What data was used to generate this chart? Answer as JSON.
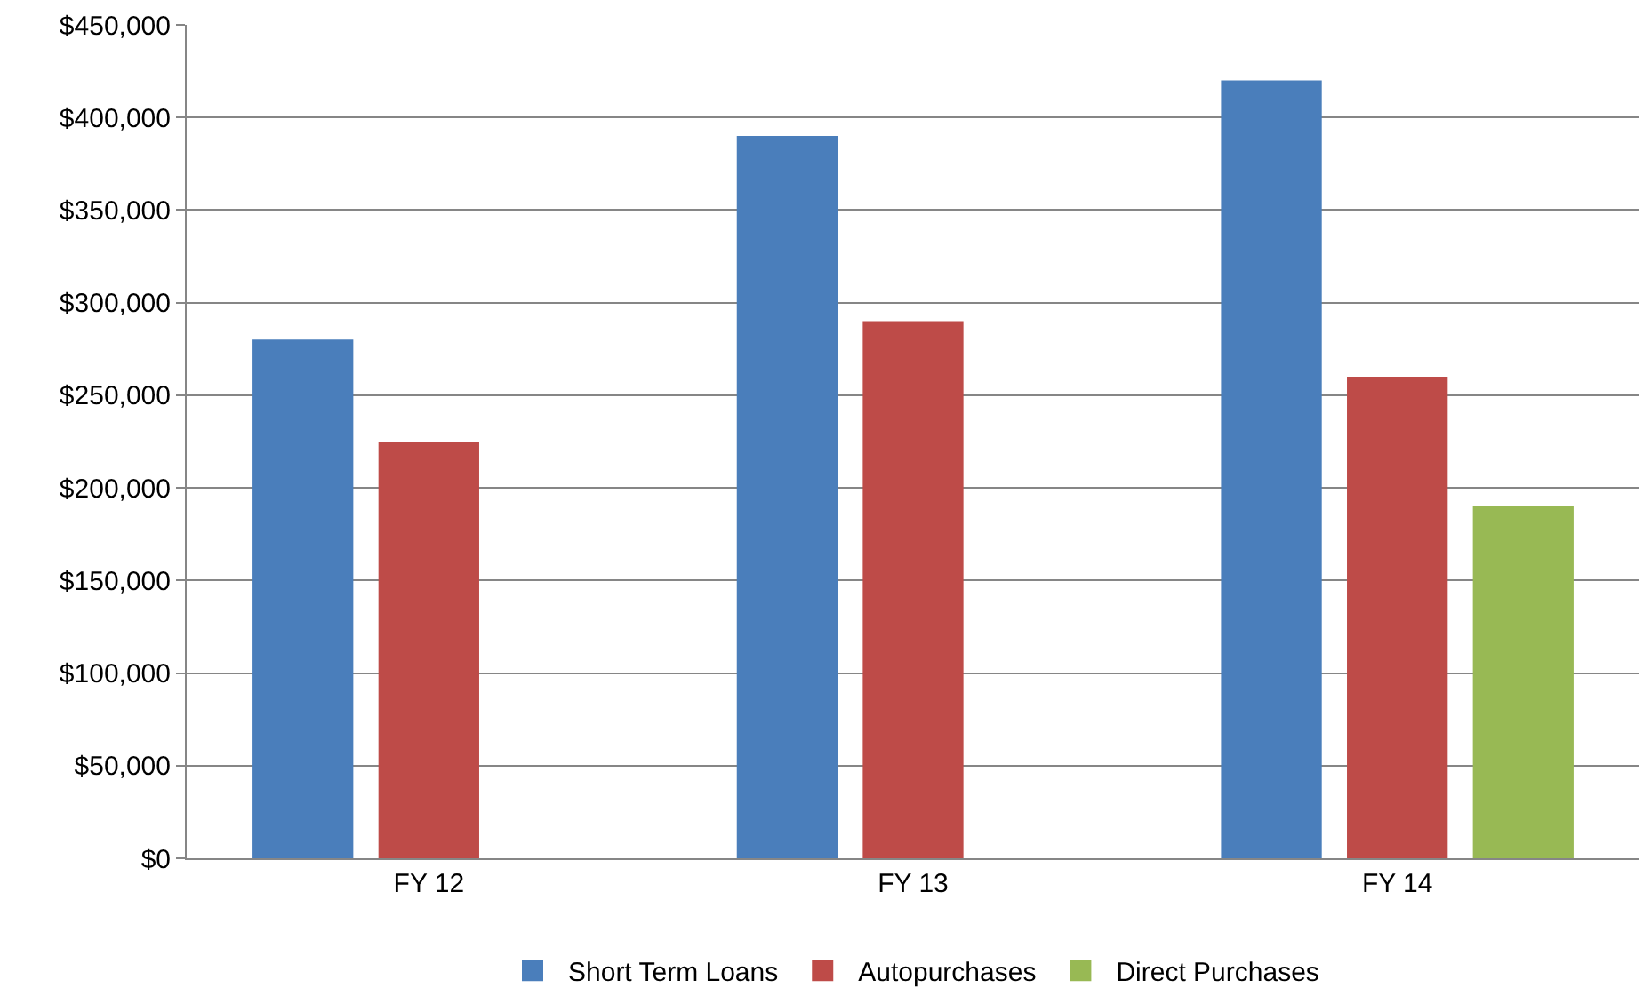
{
  "chart_data": {
    "type": "bar",
    "categories": [
      "FY 12",
      "FY 13",
      "FY 14"
    ],
    "series": [
      {
        "name": "Short Term Loans",
        "color": "#4a7ebb",
        "values": [
          280000,
          390000,
          420000
        ]
      },
      {
        "name": "Autopurchases",
        "color": "#be4b48",
        "values": [
          225000,
          290000,
          260000
        ]
      },
      {
        "name": "Direct Purchases",
        "color": "#98b954",
        "values": [
          null,
          null,
          190000
        ]
      }
    ],
    "ylim": [
      0,
      450000
    ],
    "yticks": [
      {
        "value": 0,
        "label": "$0"
      },
      {
        "value": 50000,
        "label": "$50,000"
      },
      {
        "value": 100000,
        "label": "$100,000"
      },
      {
        "value": 150000,
        "label": "$150,000"
      },
      {
        "value": 200000,
        "label": "$200,000"
      },
      {
        "value": 250000,
        "label": "$250,000"
      },
      {
        "value": 300000,
        "label": "$300,000"
      },
      {
        "value": 350000,
        "label": "$350,000"
      },
      {
        "value": 400000,
        "label": "$400,000"
      },
      {
        "value": 450000,
        "label": "$450,000"
      }
    ],
    "grid": "y",
    "legend": "bottom"
  }
}
